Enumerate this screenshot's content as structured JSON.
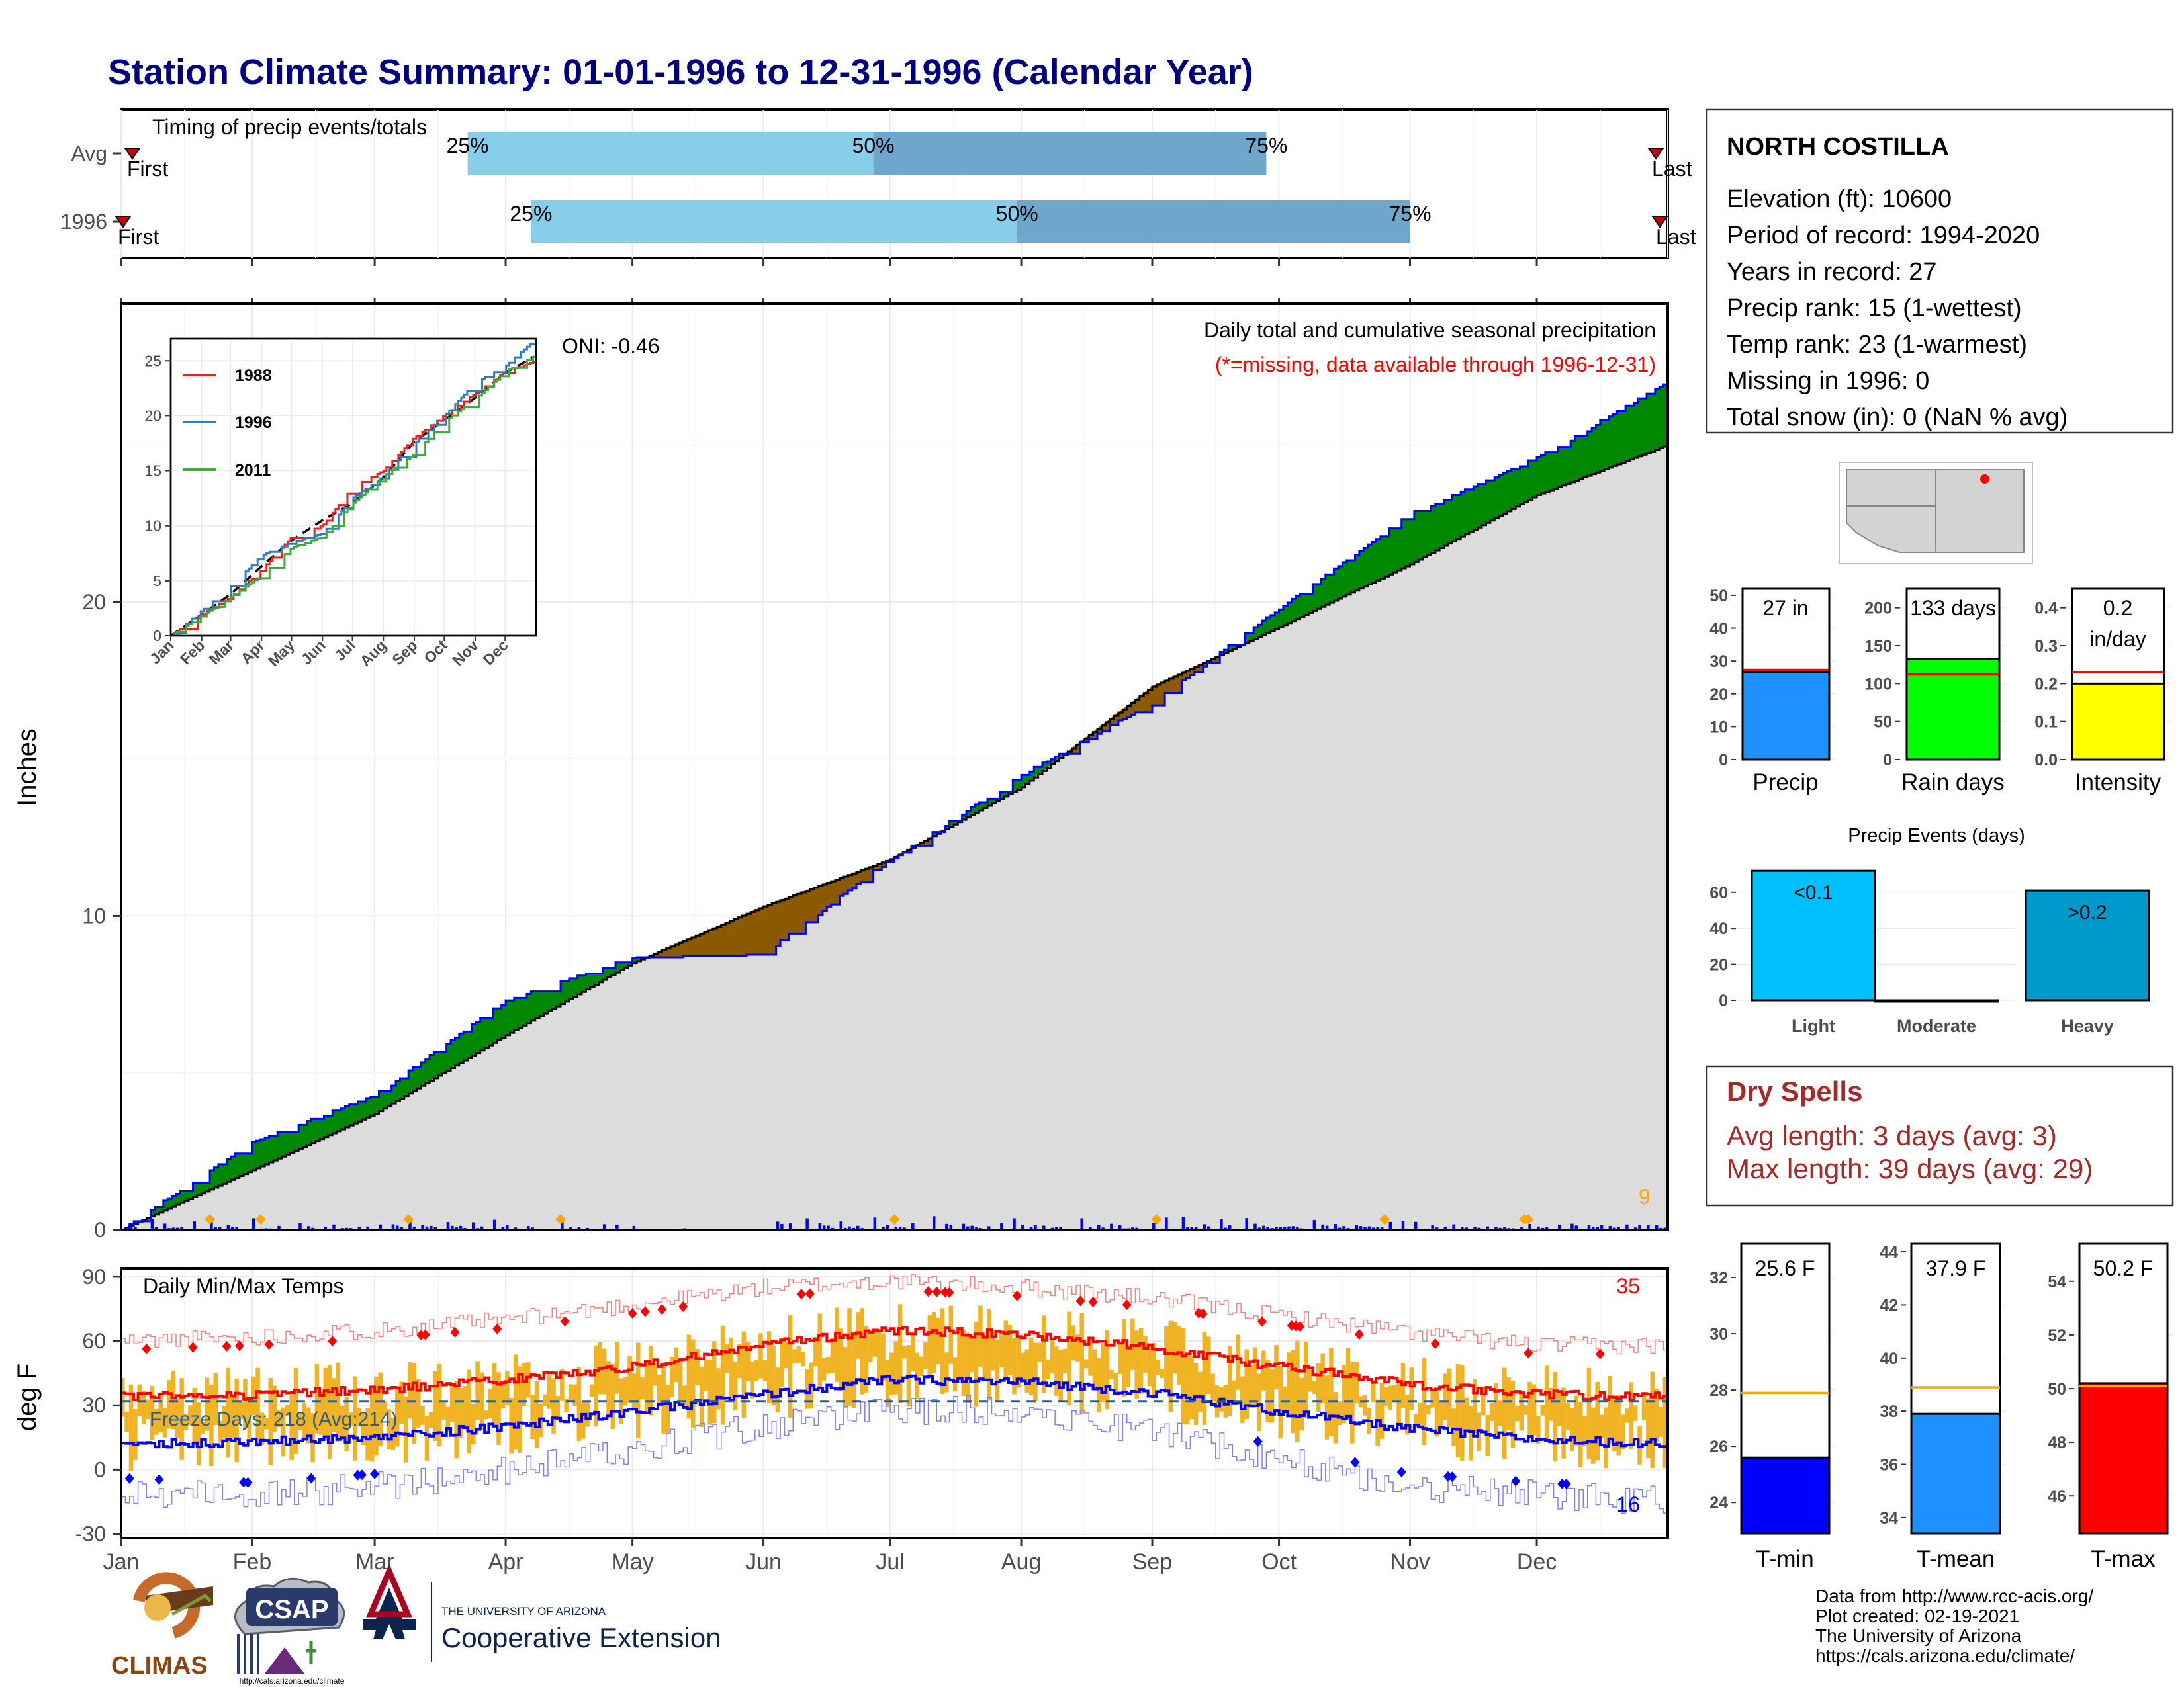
{
  "title": "Station Climate Summary: 01-01-1996 to 12-31-1996 (Calendar Year)",
  "timing": {
    "label": "Timing of precip events/totals",
    "rows": [
      {
        "label": "Avg",
        "first": "First",
        "last": "Last",
        "p25_doy": 82,
        "p50_doy": 178,
        "p75_doy": 271,
        "p25": "25%",
        "p50": "50%",
        "p75": "75%"
      },
      {
        "label": "1996",
        "first": "First",
        "last": "Last",
        "p25_doy": 97,
        "p50_doy": 212,
        "p75_doy": 305,
        "p25": "25%",
        "p50": "50%",
        "p75": "75%"
      }
    ]
  },
  "precip_panel": {
    "title": "Daily total and cumulative seasonal precipitation",
    "missing_note": "(*=missing, data available through 1996-12-31)",
    "oni": "ONI: -0.46",
    "ylabel": "Inches",
    "yticks": [
      "0",
      "10",
      "20"
    ],
    "count_label": "9"
  },
  "inset": {
    "yticks": [
      "0",
      "5",
      "10",
      "15",
      "20",
      "25"
    ],
    "months": [
      "Jan",
      "Feb",
      "Mar",
      "Apr",
      "May",
      "Jun",
      "Jul",
      "Aug",
      "Sep",
      "Oct",
      "Nov",
      "Dec"
    ],
    "legend": [
      {
        "name": "1988",
        "color": "#e8201e"
      },
      {
        "name": "1996",
        "color": "#2f7dbf"
      },
      {
        "name": "2011",
        "color": "#3caa3c"
      }
    ]
  },
  "temp_panel": {
    "title": "Daily Min/Max Temps",
    "ylabel": "deg F",
    "yticks": [
      "-30",
      "0",
      "30",
      "60",
      "90"
    ],
    "freeze_label": "Freeze Days: 218 (Avg:214)",
    "max_count": "35",
    "min_count": "16"
  },
  "months": [
    "Jan",
    "Feb",
    "Mar",
    "Apr",
    "May",
    "Jun",
    "Jul",
    "Aug",
    "Sep",
    "Oct",
    "Nov",
    "Dec"
  ],
  "station": {
    "name": "NORTH COSTILLA",
    "lines": [
      "Elevation (ft): 10600",
      "Period of record: 1994-2020",
      "Years in record: 27",
      "Precip rank: 15 (1-wettest)",
      "Temp rank: 23 (1-warmest)",
      "Missing in 1996: 0",
      "Total snow (in): 0 (NaN % avg)"
    ]
  },
  "mini_bars": [
    {
      "name": "Precip",
      "value_label": "27 in",
      "value_label2": "",
      "value": 26.5,
      "avg": 27.3,
      "ymax": 52,
      "yticks": [
        "0",
        "10",
        "20",
        "30",
        "40",
        "50"
      ],
      "tick_vals": [
        0,
        10,
        20,
        30,
        40,
        50
      ],
      "color": "#1e90ff"
    },
    {
      "name": "Rain days",
      "value_label": "133 days",
      "value_label2": "",
      "value": 133,
      "avg": 112,
      "ymax": 225,
      "yticks": [
        "0",
        "50",
        "100",
        "150",
        "200"
      ],
      "tick_vals": [
        0,
        50,
        100,
        150,
        200
      ],
      "color": "#00ff00"
    },
    {
      "name": "Intensity",
      "value_label": "0.2",
      "value_label2": "in/day",
      "value": 0.2,
      "avg": 0.23,
      "ymax": 0.45,
      "yticks": [
        "0.0",
        "0.1",
        "0.2",
        "0.3",
        "0.4"
      ],
      "tick_vals": [
        0,
        0.1,
        0.2,
        0.3,
        0.4
      ],
      "color": "#ffff00"
    }
  ],
  "precip_events": {
    "title": "Precip Events (days)",
    "yticks": [
      "0",
      "20",
      "40",
      "60"
    ],
    "bars": [
      {
        "name": "Light",
        "value": 72,
        "label": "<0.1",
        "color": "#00bfff"
      },
      {
        "name": "Moderate",
        "value": 0,
        "label": "",
        "color": "#1e90ff"
      },
      {
        "name": "Heavy",
        "value": 61,
        "label": ">0.2",
        "color": "#0099cc"
      }
    ]
  },
  "dry_spells": {
    "title": "Dry Spells",
    "avg_line": "Avg length: 3 days (avg: 3)",
    "max_line": "Max length: 39 days (avg: 29)",
    "color": "#a52a2a"
  },
  "temp_bars": [
    {
      "name": "T-min",
      "value_label": "25.6 F",
      "value": 25.6,
      "avg": 27.9,
      "ymin": 22.9,
      "ymax": 33.2,
      "yticks": [
        "24",
        "26",
        "28",
        "30",
        "32"
      ],
      "tick_vals": [
        24,
        26,
        28,
        30,
        32
      ],
      "color": "#0000ff"
    },
    {
      "name": "T-mean",
      "value_label": "37.9 F",
      "value": 37.9,
      "avg": 38.9,
      "ymin": 33.4,
      "ymax": 44.3,
      "yticks": [
        "34",
        "36",
        "38",
        "40",
        "42",
        "44"
      ],
      "tick_vals": [
        34,
        36,
        38,
        40,
        42,
        44
      ],
      "color": "#1e90ff"
    },
    {
      "name": "T-max",
      "value_label": "50.2 F",
      "value": 50.2,
      "avg": 50.1,
      "ymin": 44.6,
      "ymax": 55.4,
      "yticks": [
        "46",
        "48",
        "50",
        "52",
        "54"
      ],
      "tick_vals": [
        46,
        48,
        50,
        52,
        54
      ],
      "color": "#ff0000"
    }
  ],
  "logos": {
    "climas": "CLIMAS",
    "csap": "CSAP",
    "csap_url": "http://cals.arizona.edu/climate",
    "ua_small": "THE UNIVERSITY OF ARIZONA",
    "ua_big": "Cooperative Extension"
  },
  "credits": [
    "Data from http://www.rcc-acis.org/",
    "Plot created: 02-19-2021",
    "The University of Arizona",
    "https://cals.arizona.edu/climate/"
  ],
  "chart_data": [
    {
      "type": "bar",
      "title": "Timing of precip events/totals",
      "categories": [
        "Avg",
        "1996"
      ],
      "series": [
        {
          "name": "25%",
          "values": [
            82,
            97
          ]
        },
        {
          "name": "50%",
          "values": [
            178,
            212
          ]
        },
        {
          "name": "75%",
          "values": [
            271,
            305
          ]
        }
      ]
    },
    {
      "type": "area",
      "title": "Daily total and cumulative seasonal precipitation",
      "ylabel": "Inches",
      "ylim": [
        0,
        29.5
      ],
      "x": [
        "Jan",
        "Feb",
        "Mar",
        "Apr",
        "May",
        "Jun",
        "Jul",
        "Aug",
        "Sep",
        "Oct",
        "Nov",
        "Dec",
        "Dec 31"
      ],
      "series": [
        {
          "name": "1996",
          "values": [
            0.0,
            2.8,
            4.3,
            7.3,
            8.7,
            8.8,
            11.8,
            14.5,
            16.8,
            19.8,
            22.8,
            24.6,
            27.0
          ]
        },
        {
          "name": "Avg",
          "values": [
            0.0,
            1.9,
            3.7,
            6.2,
            8.5,
            10.3,
            11.8,
            14.1,
            17.3,
            19.2,
            21.2,
            23.4,
            25.0
          ]
        }
      ]
    },
    {
      "type": "line",
      "x": [
        "Jan",
        "Feb",
        "Mar",
        "Apr",
        "May",
        "Jun",
        "Jul",
        "Aug",
        "Sep",
        "Oct",
        "Nov",
        "Dec",
        "Dec 31"
      ],
      "ylim": [
        0,
        27
      ],
      "series": [
        {
          "name": "1988",
          "values": [
            0,
            2,
            3.5,
            6,
            9,
            10,
            13.5,
            15,
            18,
            20,
            22,
            24,
            25
          ]
        },
        {
          "name": "1996",
          "values": [
            0,
            2.3,
            4.5,
            7.3,
            8.5,
            9.3,
            12.5,
            14.5,
            17.5,
            20,
            23,
            24.5,
            27
          ]
        },
        {
          "name": "2011",
          "values": [
            0,
            1.8,
            3.5,
            5.5,
            8,
            9,
            12,
            14.5,
            16.5,
            19.5,
            21.5,
            24,
            25.5
          ]
        }
      ]
    },
    {
      "type": "line",
      "title": "Daily Min/Max Temps",
      "ylabel": "deg F",
      "ylim": [
        -32,
        94
      ],
      "x": [
        "Jan",
        "Feb",
        "Mar",
        "Apr",
        "May",
        "Jun",
        "Jul",
        "Aug",
        "Sep",
        "Oct",
        "Nov",
        "Dec",
        "Dec 31"
      ],
      "series": [
        {
          "name": "Avg max",
          "values": [
            34,
            35,
            37,
            42,
            48,
            58,
            65,
            63,
            57,
            48,
            40,
            35,
            34
          ]
        },
        {
          "name": "Avg min",
          "values": [
            12,
            13,
            15,
            20,
            27,
            35,
            42,
            41,
            36,
            27,
            19,
            14,
            12
          ]
        },
        {
          "name": "Record max",
          "values": [
            60,
            62,
            65,
            70,
            77,
            85,
            88,
            85,
            80,
            72,
            64,
            58,
            58
          ]
        },
        {
          "name": "Record min",
          "values": [
            -10,
            -12,
            -8,
            0,
            10,
            20,
            28,
            28,
            18,
            5,
            -8,
            -12,
            -15
          ]
        },
        {
          "name": "Freeze",
          "values": [
            32,
            32,
            32,
            32,
            32,
            32,
            32,
            32,
            32,
            32,
            32,
            32,
            32
          ]
        }
      ]
    },
    {
      "type": "bar",
      "title": "Precip Events (days)",
      "categories": [
        "Light",
        "Moderate",
        "Heavy"
      ],
      "values": [
        72,
        0,
        61
      ]
    }
  ]
}
